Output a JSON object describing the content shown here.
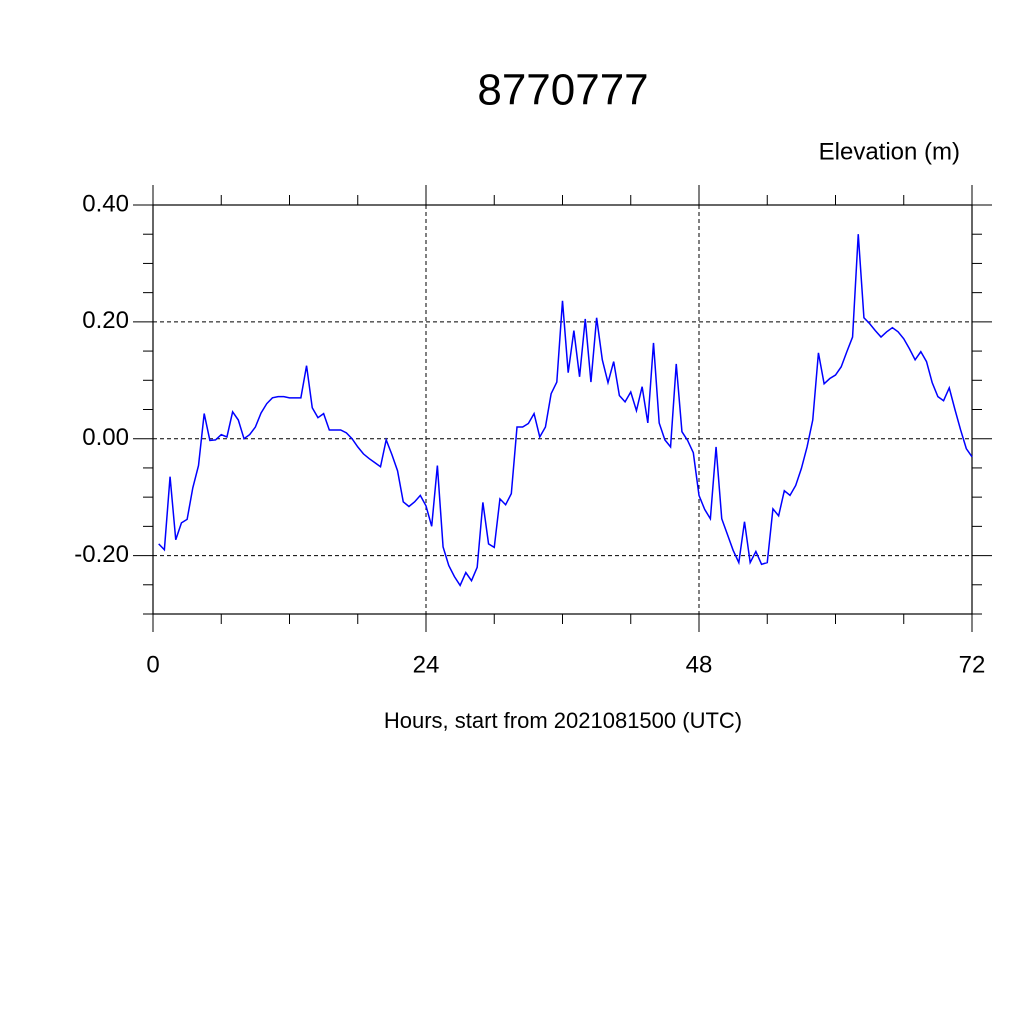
{
  "chart_data": {
    "type": "line",
    "title": "8770777",
    "subtitle": "Elevation (m)",
    "xlabel": "Hours, start from 2021081500 (UTC)",
    "x": [
      0.5,
      1,
      1.5,
      2,
      2.5,
      3,
      3.5,
      4,
      4.5,
      5,
      5.5,
      6,
      6.5,
      7,
      7.5,
      8,
      8.5,
      9,
      9.5,
      10,
      10.5,
      11,
      11.5,
      12,
      12.5,
      13,
      13.5,
      14,
      14.5,
      15,
      15.5,
      16,
      16.5,
      17,
      17.5,
      18,
      18.5,
      19,
      19.5,
      20,
      20.5,
      21,
      21.5,
      22,
      22.5,
      23,
      23.5,
      24,
      24.5,
      25,
      25.5,
      26,
      26.5,
      27,
      27.5,
      28,
      28.5,
      29,
      29.5,
      30,
      30.5,
      31,
      31.5,
      32,
      32.5,
      33,
      33.5,
      34,
      34.5,
      35,
      35.5,
      36,
      36.5,
      37,
      37.5,
      38,
      38.5,
      39,
      39.5,
      40,
      40.5,
      41,
      41.5,
      42,
      42.5,
      43,
      43.5,
      44,
      44.5,
      45,
      45.5,
      46,
      46.5,
      47,
      47.5,
      48,
      48.5,
      49,
      49.5,
      50,
      50.5,
      51,
      51.5,
      52,
      52.5,
      53,
      53.5,
      54,
      54.5,
      55,
      55.5,
      56,
      56.5,
      57,
      57.5,
      58,
      58.5,
      59,
      59.5,
      60,
      60.5,
      61,
      61.5,
      62,
      62.5,
      63,
      63.5,
      64,
      64.5,
      65,
      65.5,
      66,
      66.5,
      67,
      67.5,
      68,
      68.5,
      69,
      69.5,
      70,
      70.5,
      71,
      71.5,
      72
    ],
    "series": [
      {
        "name": "Elevation",
        "color": "#0000ff",
        "values": [
          -0.18,
          -0.19,
          -0.065,
          -0.173,
          -0.144,
          -0.138,
          -0.084,
          -0.046,
          0.043,
          -0.003,
          -0.002,
          0.007,
          0.003,
          0.046,
          0.032,
          0.0,
          0.007,
          0.02,
          0.044,
          0.06,
          0.07,
          0.072,
          0.072,
          0.07,
          0.07,
          0.07,
          0.125,
          0.053,
          0.036,
          0.043,
          0.015,
          0.015,
          0.015,
          0.01,
          0.0,
          -0.014,
          -0.026,
          -0.034,
          -0.041,
          -0.048,
          -0.002,
          -0.027,
          -0.055,
          -0.108,
          -0.116,
          -0.108,
          -0.097,
          -0.115,
          -0.15,
          -0.046,
          -0.185,
          -0.217,
          -0.236,
          -0.251,
          -0.229,
          -0.243,
          -0.22,
          -0.109,
          -0.18,
          -0.186,
          -0.103,
          -0.113,
          -0.094,
          0.02,
          0.02,
          0.026,
          0.043,
          0.003,
          0.02,
          0.077,
          0.097,
          0.236,
          0.113,
          0.185,
          0.106,
          0.205,
          0.097,
          0.207,
          0.135,
          0.096,
          0.132,
          0.074,
          0.063,
          0.08,
          0.048,
          0.089,
          0.027,
          0.164,
          0.027,
          -0.002,
          -0.014,
          0.128,
          0.012,
          -0.003,
          -0.024,
          -0.097,
          -0.121,
          -0.137,
          -0.014,
          -0.137,
          -0.164,
          -0.191,
          -0.212,
          -0.142,
          -0.212,
          -0.193,
          -0.215,
          -0.212,
          -0.12,
          -0.132,
          -0.089,
          -0.097,
          -0.08,
          -0.051,
          -0.014,
          0.032,
          0.147,
          0.094,
          0.103,
          0.109,
          0.123,
          0.149,
          0.174,
          0.35,
          0.207,
          0.197,
          0.185,
          0.174,
          0.183,
          0.19,
          0.183,
          0.171,
          0.154,
          0.135,
          0.149,
          0.132,
          0.096,
          0.072,
          0.065,
          0.087,
          0.05,
          0.015,
          -0.017,
          -0.031
        ]
      }
    ],
    "xlim": [
      0,
      72
    ],
    "ylim": [
      -0.3,
      0.4
    ],
    "xticks": [
      0,
      24,
      48,
      72
    ],
    "yticks": [
      {
        "value": 0.4,
        "label": "0.40"
      },
      {
        "value": 0.2,
        "label": "0.20"
      },
      {
        "value": 0,
        "label": "0.00"
      },
      {
        "value": -0.2,
        "label": "-0.20"
      }
    ],
    "xminorticks": [
      6,
      12,
      18,
      30,
      36,
      42,
      54,
      60,
      66
    ],
    "yminorticks": [
      -0.3,
      -0.25,
      -0.15,
      -0.1,
      -0.05,
      0.05,
      0.1,
      0.15,
      0.25,
      0.3,
      0.35
    ],
    "grid": true
  }
}
